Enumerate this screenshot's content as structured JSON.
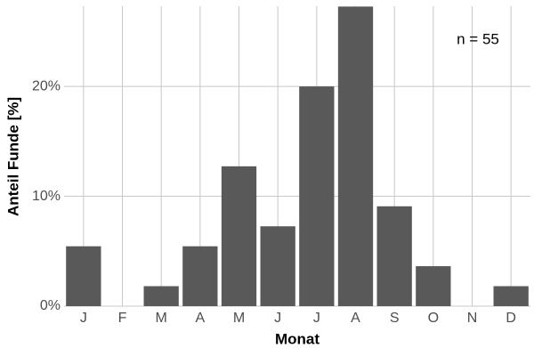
{
  "chart_data": {
    "type": "bar",
    "x_label": "Monat",
    "y_label": "Anteil Funde [%]",
    "annotation": "n = 55",
    "categories": [
      "J",
      "F",
      "M",
      "A",
      "M",
      "J",
      "J",
      "A",
      "S",
      "O",
      "N",
      "D"
    ],
    "values": [
      5.45,
      0,
      1.82,
      5.45,
      12.73,
      7.27,
      20,
      27.27,
      9.09,
      3.64,
      0,
      1.82
    ],
    "color": "#595959",
    "ylim": [
      0,
      27.3
    ],
    "yticks": [
      {
        "value": 0,
        "label": "0%"
      },
      {
        "value": 10,
        "label": "10%"
      },
      {
        "value": 20,
        "label": "20%"
      }
    ],
    "grid": true
  }
}
